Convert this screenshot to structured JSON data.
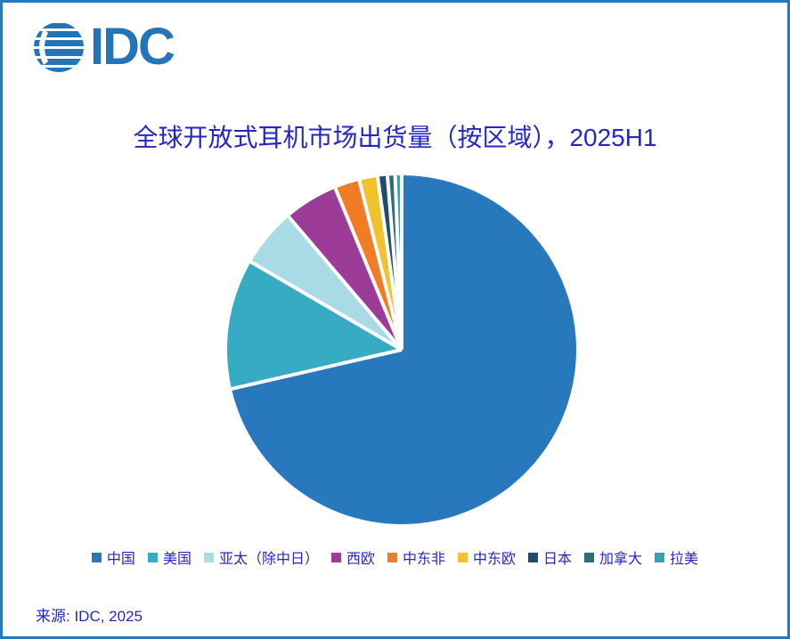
{
  "logo": {
    "text": "IDC",
    "globe_icon": "striped-globe",
    "color": "#2474BA"
  },
  "frame": {
    "border_color": "#2878BC",
    "background": "#FFFFFF",
    "text_color": "#2526C9"
  },
  "chart_data": {
    "type": "pie",
    "title": "全球开放式耳机市场出货量（按区域），2025H1",
    "start_angle_deg": 0,
    "direction": "clockwise",
    "units": "share of shipments (%)",
    "separator_color": "#FFFFFF",
    "legend_position": "bottom",
    "series": [
      {
        "key": "china",
        "label": "中国",
        "share_pct": 71.4,
        "color": "#2878BE"
      },
      {
        "key": "usa",
        "label": "美国",
        "share_pct": 12.0,
        "color": "#36ABC3"
      },
      {
        "key": "apac-ex-cn-jp",
        "label": "亚太（除中日）",
        "share_pct": 5.4,
        "color": "#A9DBE7"
      },
      {
        "key": "western-europe",
        "label": "西欧",
        "share_pct": 5.0,
        "color": "#9D3C98"
      },
      {
        "key": "mea",
        "label": "中东非",
        "share_pct": 2.3,
        "color": "#F07C25"
      },
      {
        "key": "cee",
        "label": "中东欧",
        "share_pct": 1.7,
        "color": "#F0C22E"
      },
      {
        "key": "japan",
        "label": "日本",
        "share_pct": 0.9,
        "color": "#1D4D6F"
      },
      {
        "key": "canada",
        "label": "加拿大",
        "share_pct": 0.7,
        "color": "#2E6C7C"
      },
      {
        "key": "latam",
        "label": "拉美",
        "share_pct": 0.6,
        "color": "#35A3B5"
      }
    ]
  },
  "source": {
    "text": "来源: IDC, 2025"
  }
}
